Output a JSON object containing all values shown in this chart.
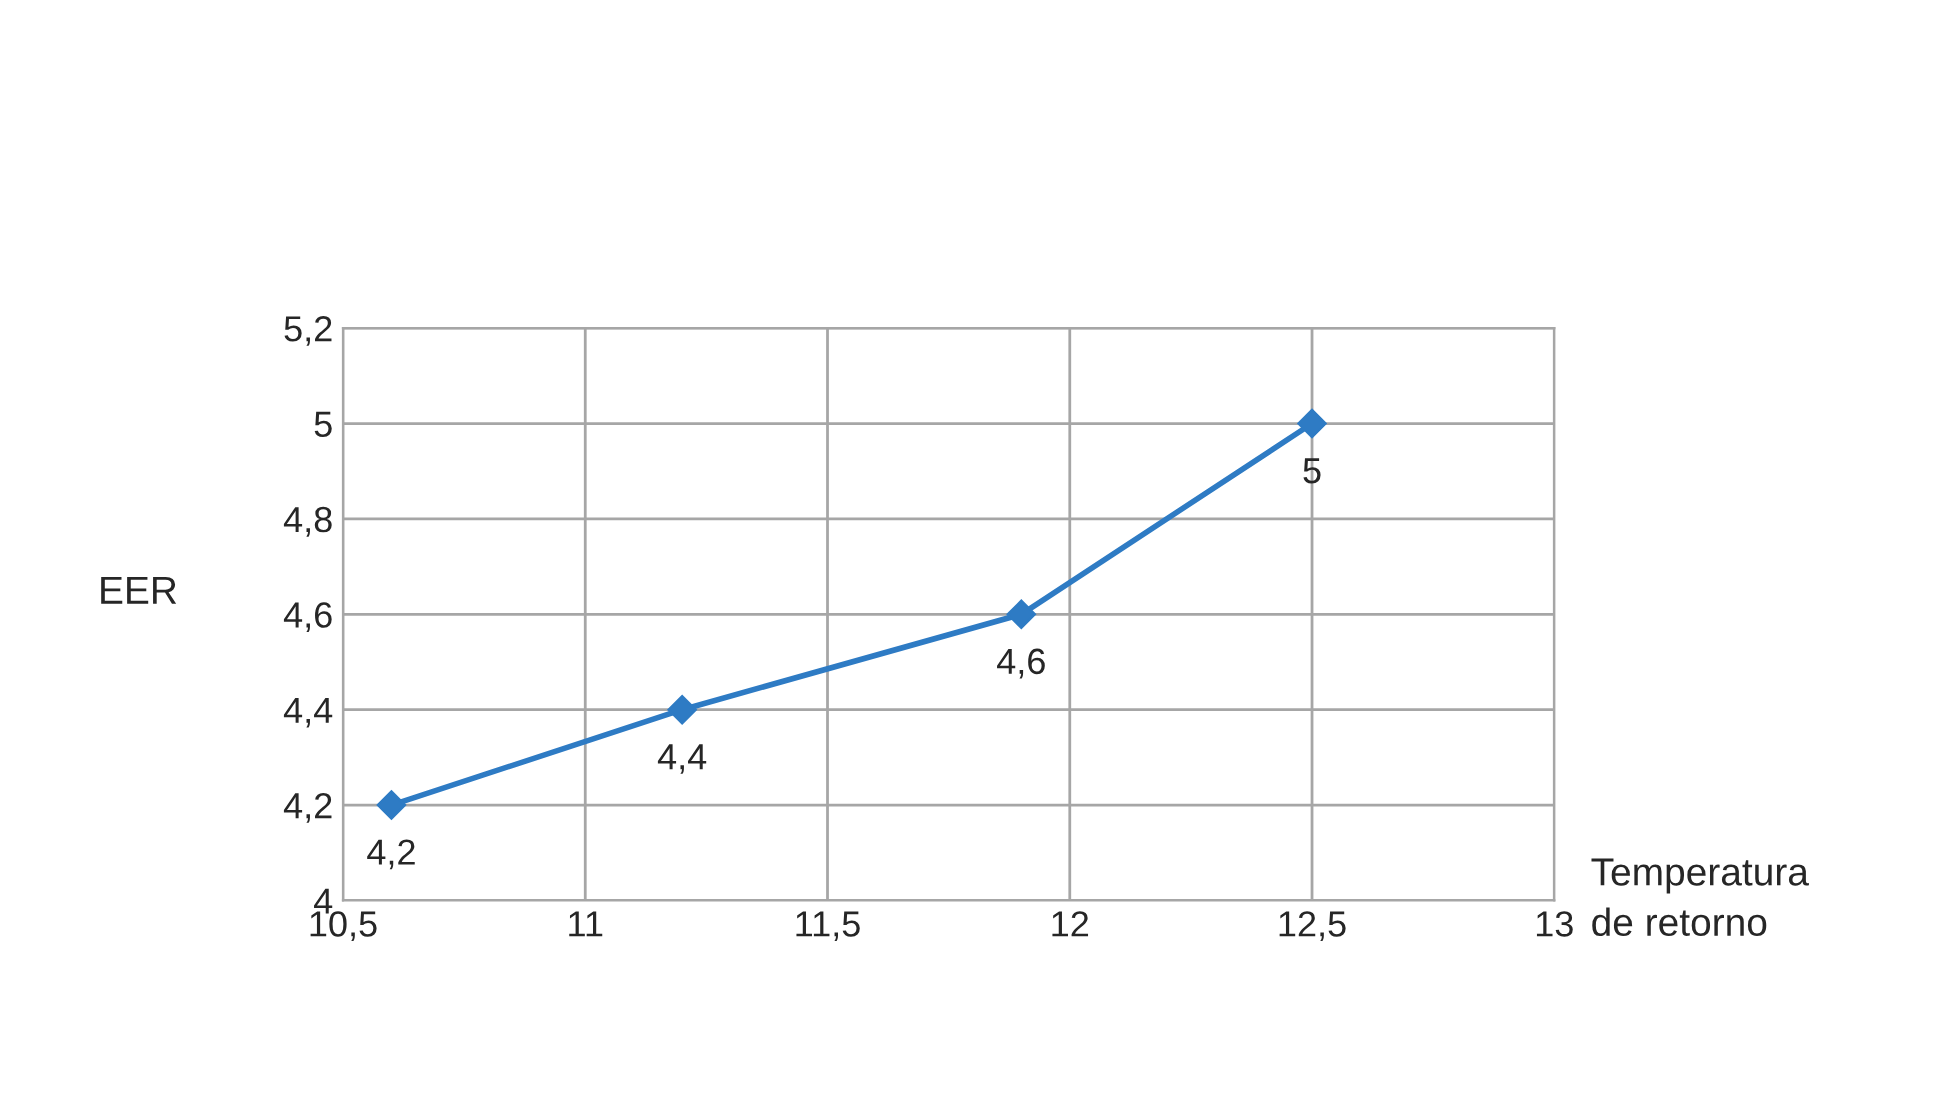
{
  "chart_data": {
    "type": "line",
    "xlabel": "Temperatura\nde retorno",
    "ylabel": "EER",
    "x": [
      10.6,
      11.2,
      11.9,
      12.5
    ],
    "series": [
      {
        "color": "#2e7bc4",
        "values": [
          4.2,
          4.4,
          4.6,
          5
        ],
        "value_labels": [
          "4,2",
          "4,4",
          "4,6",
          "5"
        ]
      }
    ],
    "xlim": [
      10.5,
      13
    ],
    "xticks": [
      {
        "value": 10.5,
        "label": "10,5"
      },
      11,
      {
        "value": 11.5,
        "label": "11,5"
      },
      12,
      {
        "value": 12.5,
        "label": "12,5"
      },
      13
    ],
    "ylim": [
      4,
      5.2
    ],
    "yticks": [
      4,
      {
        "value": 4.2,
        "label": "4,2"
      },
      {
        "value": 4.4,
        "label": "4,4"
      },
      {
        "value": 4.6,
        "label": "4,6"
      },
      {
        "value": 4.8,
        "label": "4,8"
      },
      5,
      {
        "value": 5.2,
        "label": "5,2"
      }
    ],
    "grid": true,
    "marker": "diamond",
    "line_style": "solid",
    "legend": false
  }
}
